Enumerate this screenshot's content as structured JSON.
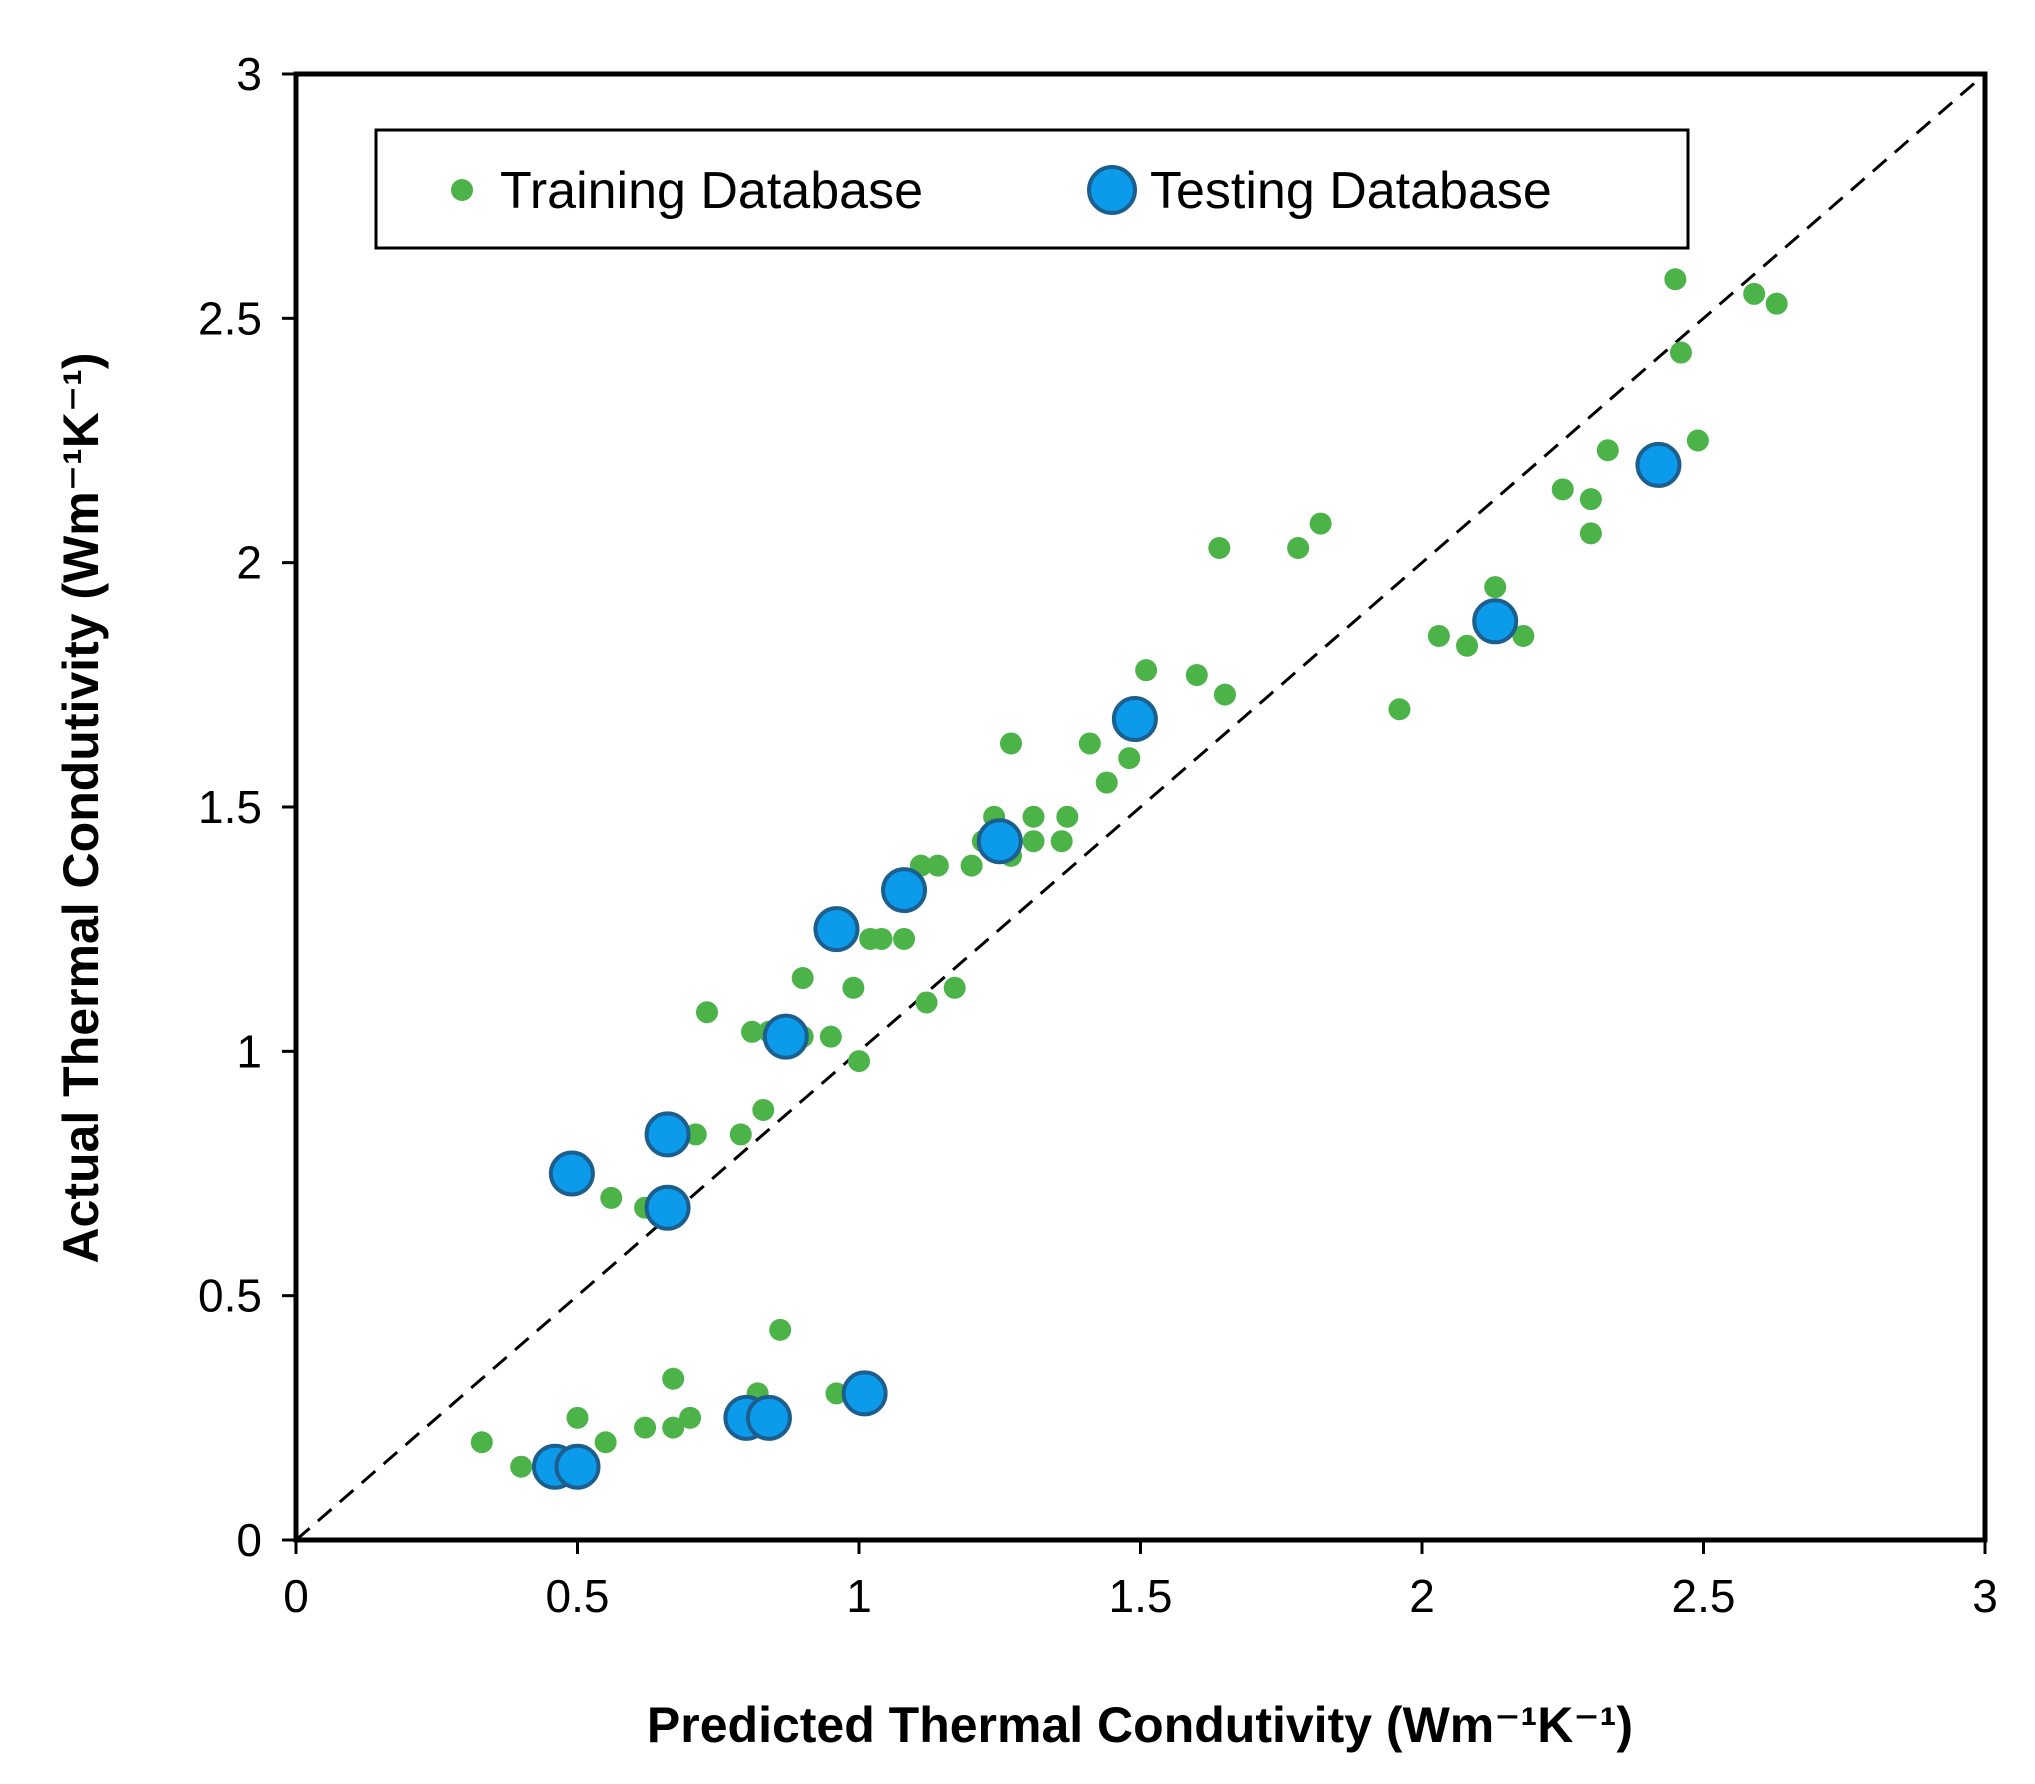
{
  "chart_data": {
    "type": "scatter",
    "title": "",
    "xlabel": "Predicted Thermal Condutivity (Wm⁻¹K⁻¹)",
    "ylabel": "Actual Thermal Condutivity (Wm⁻¹K⁻¹)",
    "xlim": [
      0,
      3
    ],
    "ylim": [
      0,
      3
    ],
    "x_ticks": [
      0,
      0.5,
      1,
      1.5,
      2,
      2.5,
      3
    ],
    "y_ticks": [
      0,
      0.5,
      1,
      1.5,
      2,
      2.5,
      3
    ],
    "x_tick_labels": [
      "0",
      "0.5",
      "1",
      "1.5",
      "2",
      "2.5",
      "3"
    ],
    "y_tick_labels": [
      "0",
      "0.5",
      "1",
      "1.5",
      "2",
      "2.5",
      "3"
    ],
    "grid": false,
    "reference_line": {
      "name": "y = x",
      "style": "dashed",
      "color": "#000000"
    },
    "legend": {
      "position": "top-left",
      "entries": [
        "Training Database",
        "Testing Database"
      ]
    },
    "series": [
      {
        "name": "Training Database",
        "color": "#4BB348",
        "points": [
          [
            0.33,
            0.2
          ],
          [
            0.4,
            0.15
          ],
          [
            0.5,
            0.25
          ],
          [
            0.55,
            0.2
          ],
          [
            0.62,
            0.23
          ],
          [
            0.67,
            0.23
          ],
          [
            0.7,
            0.25
          ],
          [
            0.67,
            0.33
          ],
          [
            0.82,
            0.3
          ],
          [
            0.86,
            0.43
          ],
          [
            0.96,
            0.3
          ],
          [
            0.56,
            0.7
          ],
          [
            0.62,
            0.68
          ],
          [
            0.71,
            0.83
          ],
          [
            0.79,
            0.83
          ],
          [
            0.83,
            0.88
          ],
          [
            0.73,
            1.08
          ],
          [
            0.81,
            1.04
          ],
          [
            0.84,
            1.04
          ],
          [
            0.9,
            1.03
          ],
          [
            0.95,
            1.03
          ],
          [
            1.0,
            0.98
          ],
          [
            0.9,
            1.15
          ],
          [
            0.99,
            1.13
          ],
          [
            1.02,
            1.23
          ],
          [
            1.04,
            1.23
          ],
          [
            1.08,
            1.23
          ],
          [
            1.12,
            1.1
          ],
          [
            1.17,
            1.13
          ],
          [
            1.11,
            1.38
          ],
          [
            1.14,
            1.38
          ],
          [
            1.2,
            1.38
          ],
          [
            1.22,
            1.43
          ],
          [
            1.24,
            1.48
          ],
          [
            1.27,
            1.4
          ],
          [
            1.31,
            1.43
          ],
          [
            1.31,
            1.48
          ],
          [
            1.36,
            1.43
          ],
          [
            1.37,
            1.48
          ],
          [
            1.27,
            1.63
          ],
          [
            1.41,
            1.63
          ],
          [
            1.44,
            1.55
          ],
          [
            1.48,
            1.6
          ],
          [
            1.51,
            1.78
          ],
          [
            1.6,
            1.77
          ],
          [
            1.65,
            1.73
          ],
          [
            1.64,
            2.03
          ],
          [
            1.78,
            2.03
          ],
          [
            1.82,
            2.08
          ],
          [
            1.96,
            1.7
          ],
          [
            2.03,
            1.85
          ],
          [
            2.08,
            1.83
          ],
          [
            2.13,
            1.95
          ],
          [
            2.18,
            1.85
          ],
          [
            2.25,
            2.15
          ],
          [
            2.3,
            2.13
          ],
          [
            2.3,
            2.06
          ],
          [
            2.33,
            2.23
          ],
          [
            2.45,
            2.58
          ],
          [
            2.46,
            2.43
          ],
          [
            2.49,
            2.25
          ],
          [
            2.59,
            2.55
          ],
          [
            2.63,
            2.53
          ]
        ]
      },
      {
        "name": "Testing Database",
        "color": "#0B9BEA",
        "points": [
          [
            0.46,
            0.15
          ],
          [
            0.5,
            0.15
          ],
          [
            0.49,
            0.75
          ],
          [
            0.66,
            0.83
          ],
          [
            0.66,
            0.68
          ],
          [
            0.8,
            0.25
          ],
          [
            0.84,
            0.25
          ],
          [
            1.01,
            0.3
          ],
          [
            0.87,
            1.03
          ],
          [
            0.96,
            1.25
          ],
          [
            1.08,
            1.33
          ],
          [
            1.25,
            1.43
          ],
          [
            1.49,
            1.68
          ],
          [
            2.13,
            1.88
          ],
          [
            2.42,
            2.2
          ]
        ]
      }
    ]
  }
}
